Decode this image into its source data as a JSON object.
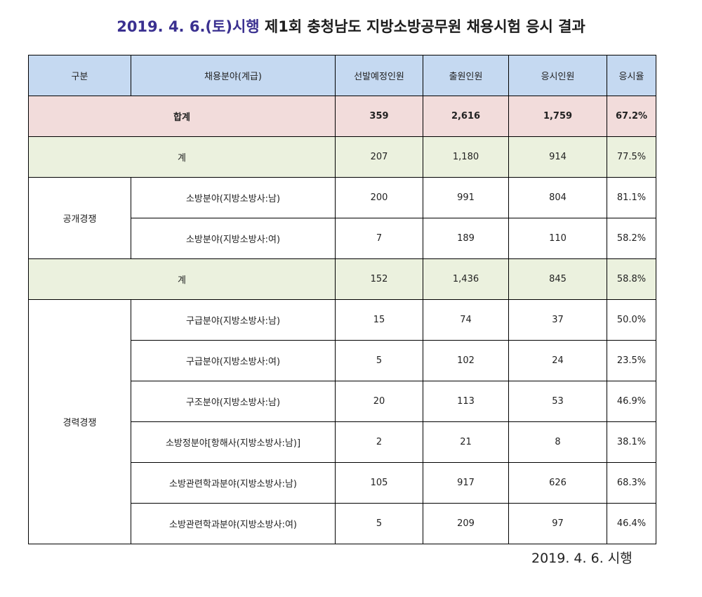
{
  "title": {
    "date": "2019. 4. 6.(토)시행",
    "text": " 제1회 충청남도 지방소방공무원 채용시험 응시 결과"
  },
  "headers": [
    "구분",
    "채용분야(계급)",
    "선발예정인원",
    "출원인원",
    "응시인원",
    "응시율"
  ],
  "total": {
    "label": "합계",
    "planned": "359",
    "applied": "2,616",
    "attended": "1,759",
    "rate": "67.2%"
  },
  "open": {
    "group": "공개경쟁",
    "subtotal": {
      "label": "계",
      "planned": "207",
      "applied": "1,180",
      "attended": "914",
      "rate": "77.5%"
    },
    "rows": [
      {
        "field": "소방분야(지방소방사:남)",
        "planned": "200",
        "applied": "991",
        "attended": "804",
        "rate": "81.1%"
      },
      {
        "field": "소방분야(지방소방사:여)",
        "planned": "7",
        "applied": "189",
        "attended": "110",
        "rate": "58.2%"
      }
    ]
  },
  "career": {
    "group": "경력경쟁",
    "subtotal": {
      "label": "계",
      "planned": "152",
      "applied": "1,436",
      "attended": "845",
      "rate": "58.8%"
    },
    "rows": [
      {
        "field": "구급분야(지방소방사:남)",
        "planned": "15",
        "applied": "74",
        "attended": "37",
        "rate": "50.0%"
      },
      {
        "field": "구급분야(지방소방사:여)",
        "planned": "5",
        "applied": "102",
        "attended": "24",
        "rate": "23.5%"
      },
      {
        "field": "구조분야(지방소방사:남)",
        "planned": "20",
        "applied": "113",
        "attended": "53",
        "rate": "46.9%"
      },
      {
        "field": "소방정분야[항해사(지방소방사:남)]",
        "planned": "2",
        "applied": "21",
        "attended": "8",
        "rate": "38.1%"
      },
      {
        "field": "소방관련학과분야(지방소방사:남)",
        "planned": "105",
        "applied": "917",
        "attended": "626",
        "rate": "68.3%"
      },
      {
        "field": "소방관련학과분야(지방소방사:여)",
        "planned": "5",
        "applied": "209",
        "attended": "97",
        "rate": "46.4%"
      }
    ]
  },
  "footer": "2019. 4. 6. 시행"
}
